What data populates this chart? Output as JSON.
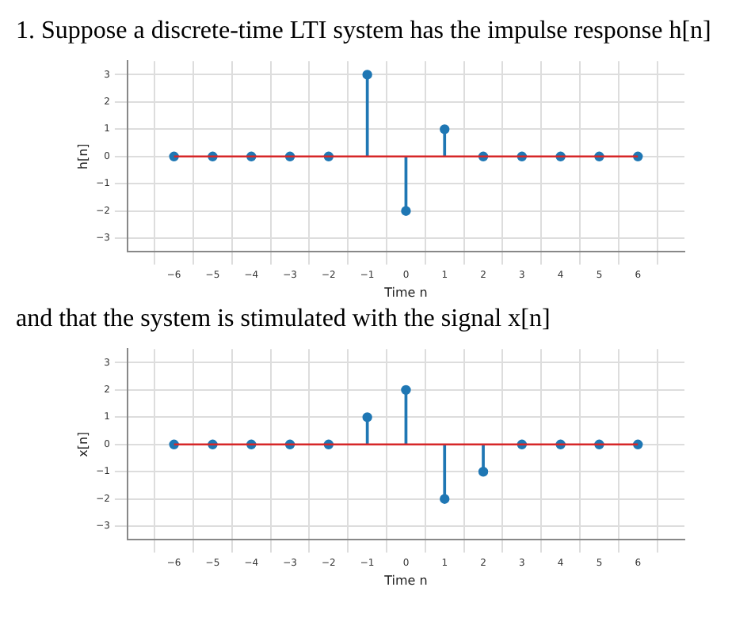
{
  "chart_data": [
    {
      "type": "lollipop",
      "title": "1. Suppose a discrete-time LTI system has the impulse response h[n]",
      "xlabel": "Time n",
      "ylabel": "h[n]",
      "x": [
        -6,
        -5,
        -4,
        -3,
        -2,
        -1,
        0,
        1,
        2,
        3,
        4,
        5,
        6
      ],
      "series": [
        {
          "color": "#1f77b4",
          "values": [
            0,
            0,
            0,
            0,
            0,
            3,
            -2,
            1,
            0,
            0,
            0,
            0,
            0
          ]
        }
      ],
      "xlim": [
        -6.65,
        6.65
      ],
      "ylim": [
        -3.5,
        3.5
      ],
      "xticks": [
        {
          "value": -6,
          "label": "−6"
        },
        {
          "value": -5,
          "label": "−5"
        },
        {
          "value": -4,
          "label": "−4"
        },
        {
          "value": -3,
          "label": "−3"
        },
        {
          "value": -2,
          "label": "−2"
        },
        {
          "value": -1,
          "label": "−1"
        },
        0,
        1,
        2,
        3,
        4,
        5,
        6
      ],
      "yticks": [
        {
          "value": -3,
          "label": "−3"
        },
        {
          "value": -2,
          "label": "−2"
        },
        {
          "value": -1,
          "label": "−1"
        },
        0,
        1,
        2,
        3
      ],
      "ref_lines": [
        {
          "axis": "y",
          "value": 0,
          "color": "#d62728"
        }
      ],
      "grid": true,
      "marker": "circle"
    },
    {
      "type": "lollipop",
      "title": "and that the system is stimulated with the signal x[n]",
      "xlabel": "Time n",
      "ylabel": "x[n]",
      "x": [
        -6,
        -5,
        -4,
        -3,
        -2,
        -1,
        0,
        1,
        2,
        3,
        4,
        5,
        6
      ],
      "series": [
        {
          "color": "#1f77b4",
          "values": [
            0,
            0,
            0,
            0,
            0,
            1,
            2,
            -2,
            -1,
            0,
            0,
            0,
            0
          ]
        }
      ],
      "xlim": [
        -6.65,
        6.65
      ],
      "ylim": [
        -3.5,
        3.5
      ],
      "xticks": [
        {
          "value": -6,
          "label": "−6"
        },
        {
          "value": -5,
          "label": "−5"
        },
        {
          "value": -4,
          "label": "−4"
        },
        {
          "value": -3,
          "label": "−3"
        },
        {
          "value": -2,
          "label": "−2"
        },
        {
          "value": -1,
          "label": "−1"
        },
        0,
        1,
        2,
        3,
        4,
        5,
        6
      ],
      "yticks": [
        {
          "value": -3,
          "label": "−3"
        },
        {
          "value": -2,
          "label": "−2"
        },
        {
          "value": -1,
          "label": "−1"
        },
        0,
        1,
        2,
        3
      ],
      "ref_lines": [
        {
          "axis": "y",
          "value": 0,
          "color": "#d62728"
        }
      ],
      "grid": true,
      "marker": "circle"
    }
  ]
}
